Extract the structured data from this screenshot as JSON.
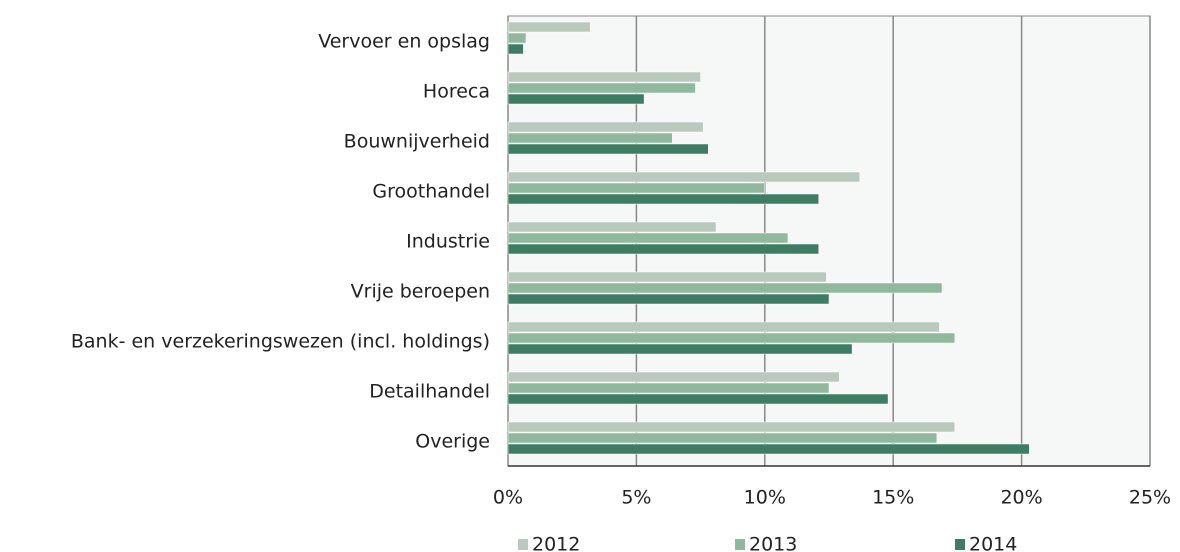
{
  "chart_data": {
    "type": "barh",
    "categories": [
      "Vervoer en opslag",
      "Horeca",
      "Bouwnijverheid",
      "Groothandel",
      "Industrie",
      "Vrije beroepen",
      "Bank- en verzekeringswezen (incl. holdings)",
      "Detailhandel",
      "Overige"
    ],
    "series": [
      {
        "name": "2012",
        "color": "#b9c9bd",
        "values": [
          3.2,
          7.5,
          7.6,
          13.7,
          8.1,
          12.4,
          16.8,
          12.9,
          17.4
        ]
      },
      {
        "name": "2013",
        "color": "#8fb89c",
        "values": [
          0.7,
          7.3,
          6.4,
          10.0,
          10.9,
          16.9,
          17.4,
          12.5,
          16.7
        ]
      },
      {
        "name": "2014",
        "color": "#3f7c64",
        "values": [
          0.6,
          5.3,
          7.8,
          12.1,
          12.1,
          12.5,
          13.4,
          14.8,
          20.3
        ]
      }
    ],
    "xlim": [
      0,
      25
    ],
    "xticks": [
      {
        "value": 0,
        "label": "0%"
      },
      {
        "value": 5,
        "label": "5%"
      },
      {
        "value": 10,
        "label": "10%"
      },
      {
        "value": 15,
        "label": "15%"
      },
      {
        "value": 20,
        "label": "20%"
      },
      {
        "value": 25,
        "label": "25%"
      }
    ],
    "grid": true,
    "legend": "bottom"
  }
}
